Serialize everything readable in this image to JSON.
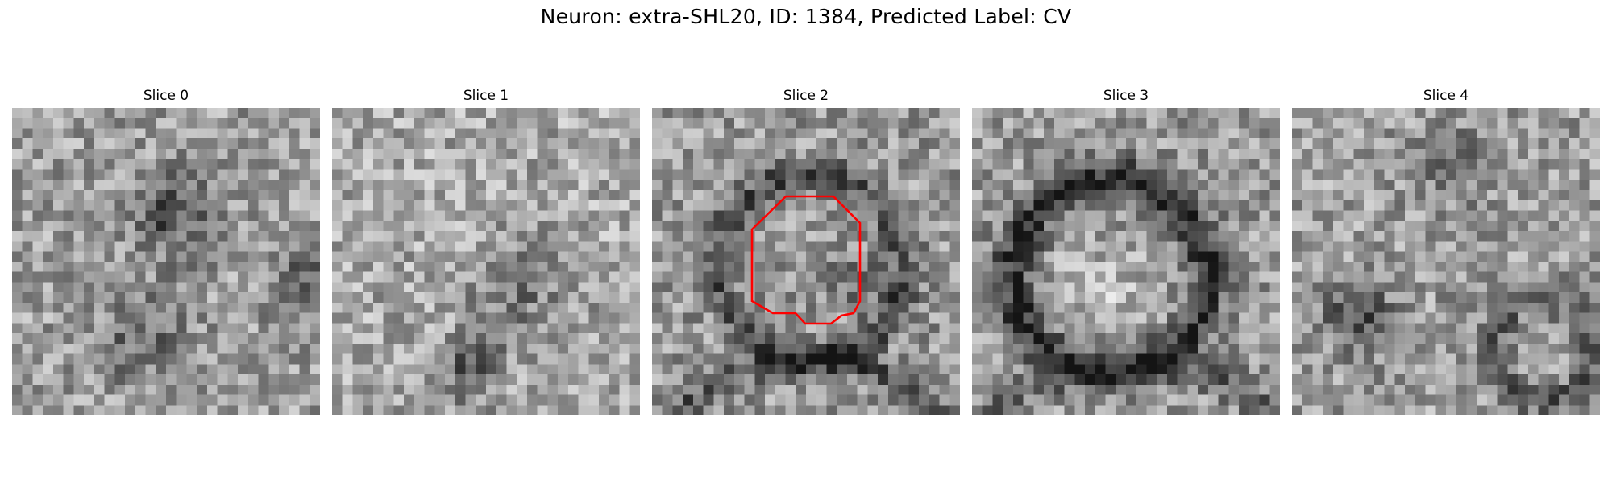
{
  "figure": {
    "title": "Neuron: extra-SHL20, ID: 1384, Predicted Label: CV"
  },
  "slices": [
    {
      "label": "Slice 0"
    },
    {
      "label": "Slice 1"
    },
    {
      "label": "Slice 2"
    },
    {
      "label": "Slice 3"
    },
    {
      "label": "Slice 4"
    }
  ],
  "colors": {
    "contour": "#ff0000",
    "background": "#ffffff",
    "colormap": "gray"
  }
}
